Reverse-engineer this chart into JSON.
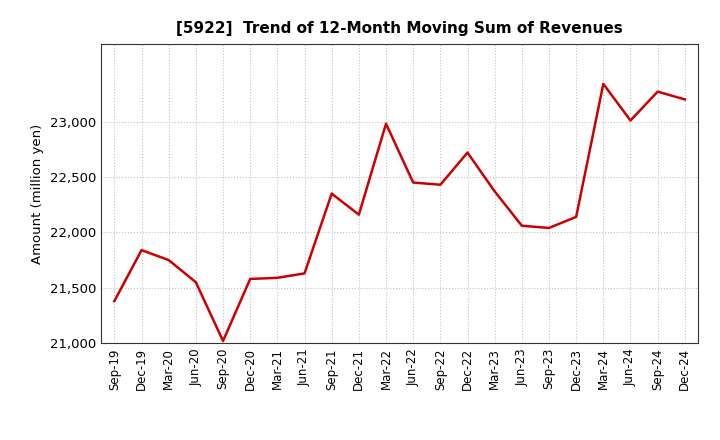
{
  "title": "[5922]  Trend of 12-Month Moving Sum of Revenues",
  "ylabel": "Amount (million yen)",
  "line_color": "#cc0000",
  "line_width": 1.8,
  "background_color": "#ffffff",
  "plot_bg_color": "#ffffff",
  "grid_color": "#bbbbbb",
  "ylim": [
    21000,
    23700
  ],
  "yticks": [
    21000,
    21500,
    22000,
    22500,
    23000
  ],
  "labels": [
    "Sep-19",
    "Dec-19",
    "Mar-20",
    "Jun-20",
    "Sep-20",
    "Dec-20",
    "Mar-21",
    "Jun-21",
    "Sep-21",
    "Dec-21",
    "Mar-22",
    "Jun-22",
    "Sep-22",
    "Dec-22",
    "Mar-23",
    "Jun-23",
    "Sep-23",
    "Dec-23",
    "Mar-24",
    "Jun-24",
    "Sep-24",
    "Dec-24"
  ],
  "values": [
    21380,
    21840,
    21750,
    21550,
    21020,
    21580,
    21590,
    21630,
    22350,
    22160,
    22980,
    22450,
    22430,
    22720,
    22370,
    22060,
    22040,
    22140,
    23340,
    23010,
    23270,
    23200
  ]
}
